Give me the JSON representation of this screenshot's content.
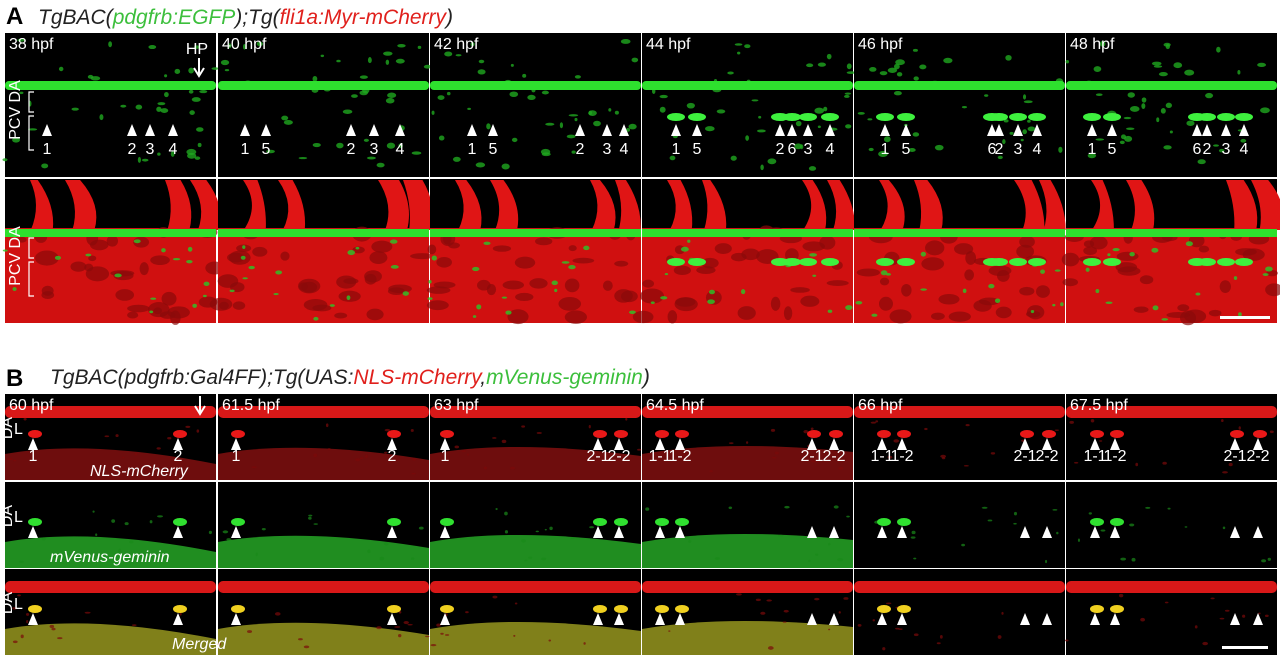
{
  "panel_a": {
    "label": "A",
    "title": [
      "TgBAC(",
      "pdgfrb:EGFP",
      ");Tg(",
      "fli1a:Myr-mCherry",
      ")"
    ],
    "hp_label": "HP",
    "vessel_label": "PCV DA",
    "frames": [
      {
        "time": "38 hpf",
        "cells": [
          "1",
          "2",
          "3",
          "4"
        ]
      },
      {
        "time": "40 hpf",
        "cells": [
          "1",
          "5",
          "2",
          "3",
          "4"
        ]
      },
      {
        "time": "42 hpf",
        "cells": [
          "1",
          "5",
          "2",
          "3",
          "4"
        ]
      },
      {
        "time": "44 hpf",
        "cells": [
          "1",
          "5",
          "2",
          "6",
          "3",
          "4"
        ]
      },
      {
        "time": "46 hpf",
        "cells": [
          "1",
          "5",
          "6",
          "2",
          "3",
          "4"
        ]
      },
      {
        "time": "48 hpf",
        "cells": [
          "1",
          "5",
          "6",
          "2",
          "3",
          "4"
        ]
      }
    ]
  },
  "panel_b": {
    "label": "B",
    "title": [
      "TgBAC(pdgfrb:Gal4FF);Tg(UAS:",
      "NLS-mCherry",
      ",",
      "mVenus-geminin",
      ")"
    ],
    "row_labels": [
      "NLS-mCherry",
      "mVenus-geminin",
      "Merged"
    ],
    "vessel_labels": [
      "DA",
      "L"
    ],
    "frames": [
      {
        "time": "60 hpf",
        "cells": [
          "1",
          "2"
        ]
      },
      {
        "time": "61.5 hpf",
        "cells": [
          "1",
          "2"
        ]
      },
      {
        "time": "63 hpf",
        "cells": [
          "1",
          "2-1",
          "2-2"
        ]
      },
      {
        "time": "64.5 hpf",
        "cells": [
          "1-1",
          "1-2",
          "2-1",
          "2-2"
        ]
      },
      {
        "time": "66 hpf",
        "cells": [
          "1-1",
          "1-2",
          "2-1",
          "2-2"
        ]
      },
      {
        "time": "67.5 hpf",
        "cells": [
          "1-1",
          "1-2",
          "2-1",
          "2-2"
        ]
      }
    ]
  }
}
